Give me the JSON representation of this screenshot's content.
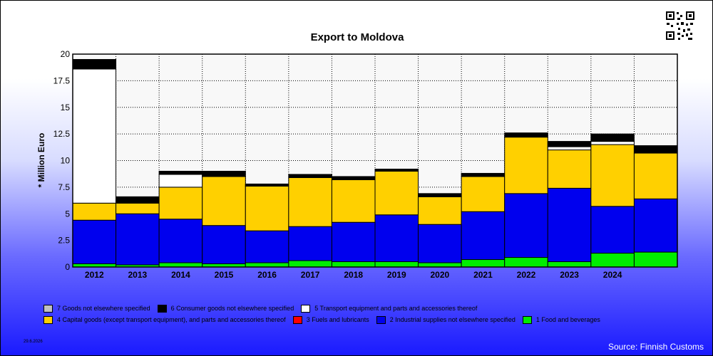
{
  "title": "Export to Moldova",
  "ylabel": "* Million Euro",
  "date": "29.6.2026",
  "source": "Source: Finnish Customs",
  "colors": {
    "background_gradient": [
      "#ffffff",
      "#1a1aff"
    ],
    "plot_bg": "#f8f8f8"
  },
  "chart_data": {
    "type": "bar",
    "stacked": true,
    "title": "Export to Moldova",
    "xlabel": "",
    "ylabel": "* Million Euro",
    "ylim": [
      0,
      20
    ],
    "yticks": [
      "0",
      "2.5",
      "5",
      "7.5",
      "10",
      "12.5",
      "15",
      "17.5",
      "20"
    ],
    "ytick_values": [
      0,
      2.5,
      5,
      7.5,
      10,
      12.5,
      15,
      17.5,
      20
    ],
    "grid": true,
    "categories": [
      "2012",
      "2013",
      "2014",
      "2015",
      "2016",
      "2017",
      "2018",
      "2019",
      "2020",
      "2021",
      "2022",
      "2023",
      "2024",
      ""
    ],
    "series": [
      {
        "name": "1 Food and beverages",
        "color": "#00ee00",
        "values": [
          0.3,
          0.2,
          0.4,
          0.3,
          0.4,
          0.6,
          0.5,
          0.5,
          0.4,
          0.7,
          0.9,
          0.5,
          1.3,
          1.4
        ]
      },
      {
        "name": "3 Fuels and lubricants",
        "color": "#ff0000",
        "values": [
          0,
          0,
          0,
          0,
          0,
          0,
          0,
          0,
          0,
          0,
          0,
          0,
          0,
          0
        ]
      },
      {
        "name": "2 Industrial supplies not elsewhere specified",
        "color": "#0000ee",
        "values": [
          4.1,
          4.8,
          4.1,
          3.6,
          3.0,
          3.2,
          3.7,
          4.4,
          3.6,
          4.5,
          6.0,
          6.9,
          4.4,
          5.0
        ]
      },
      {
        "name": "4 Capital goods (except transport equipment), and parts and accessories thereof",
        "color": "#ffd000",
        "values": [
          1.6,
          1.0,
          3.0,
          4.6,
          4.2,
          4.6,
          4.0,
          4.1,
          2.6,
          3.3,
          5.3,
          3.6,
          5.8,
          4.3
        ]
      },
      {
        "name": "5  Transport equipment and parts and accessories thereof",
        "color": "#ffffff",
        "values": [
          12.6,
          0,
          1.2,
          0,
          0,
          0,
          0,
          0,
          0,
          0,
          0,
          0.3,
          0.3,
          0
        ]
      },
      {
        "name": "6 Consumer goods not elsewhere specified",
        "color": "#000000",
        "values": [
          0.9,
          0.6,
          0.3,
          0.5,
          0.2,
          0.3,
          0.3,
          0.2,
          0.3,
          0.3,
          0.4,
          0.5,
          0.7,
          0.7
        ]
      },
      {
        "name": "7 Goods not elsewhere specified",
        "color": "#c0c0c0",
        "values": [
          0,
          0,
          0,
          0,
          0,
          0,
          0,
          0,
          0,
          0,
          0,
          0,
          0,
          0
        ]
      }
    ],
    "legend_placement": "bottom"
  },
  "legend": {
    "row1": [
      {
        "label": "7 Goods not elsewhere specified",
        "color": "#c0c0c0"
      },
      {
        "label": "6 Consumer goods not elsewhere specified",
        "color": "#000000"
      },
      {
        "label": "5  Transport equipment and parts and accessories thereof",
        "color": "#ffffff"
      }
    ],
    "row2": [
      {
        "label": "4 Capital goods (except transport equipment), and parts and accessories thereof",
        "color": "#ffd000"
      },
      {
        "label": "3 Fuels and lubricants",
        "color": "#ff0000"
      },
      {
        "label": "2 Industrial supplies not elsewhere specified",
        "color": "#0000ee"
      },
      {
        "label": "1 Food and beverages",
        "color": "#00ee00"
      }
    ]
  },
  "qr_icon": "qr-code-icon"
}
